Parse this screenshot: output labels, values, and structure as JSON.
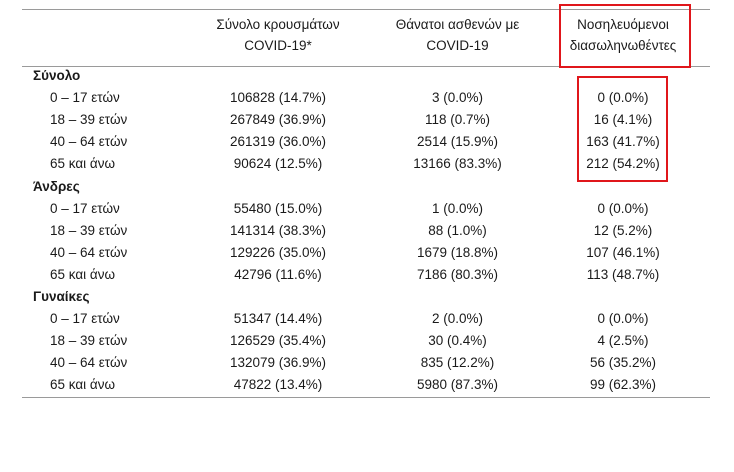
{
  "headers": {
    "col1_line1": "Σύνολο κρουσμάτων",
    "col1_line2": "COVID-19*",
    "col2_line1": "Θάνατοι ασθενών με",
    "col2_line2": "COVID-19",
    "col3_line1": "Νοσηλευόμενοι",
    "col3_line2": "διασωληνωθέντες"
  },
  "highlight_color": "#e0161b",
  "sections": [
    {
      "title": "Σύνολο",
      "rows": [
        {
          "label": "0 – 17 ετών",
          "cases": "106828 (14.7%)",
          "deaths": "3 (0.0%)",
          "intubated": "0 (0.0%)"
        },
        {
          "label": "18 – 39 ετών",
          "cases": "267849 (36.9%)",
          "deaths": "118 (0.7%)",
          "intubated": "16 (4.1%)"
        },
        {
          "label": "40 – 64 ετών",
          "cases": "261319 (36.0%)",
          "deaths": "2514 (15.9%)",
          "intubated": "163 (41.7%)"
        },
        {
          "label": "65 και άνω",
          "cases": "90624 (12.5%)",
          "deaths": "13166 (83.3%)",
          "intubated": "212 (54.2%)"
        }
      ]
    },
    {
      "title": "Άνδρες",
      "rows": [
        {
          "label": "0 – 17 ετών",
          "cases": "55480 (15.0%)",
          "deaths": "1 (0.0%)",
          "intubated": "0 (0.0%)"
        },
        {
          "label": "18 – 39 ετών",
          "cases": "141314 (38.3%)",
          "deaths": "88 (1.0%)",
          "intubated": "12 (5.2%)"
        },
        {
          "label": "40 – 64 ετών",
          "cases": "129226 (35.0%)",
          "deaths": "1679 (18.8%)",
          "intubated": "107 (46.1%)"
        },
        {
          "label": "65 και άνω",
          "cases": "42796 (11.6%)",
          "deaths": "7186 (80.3%)",
          "intubated": "113 (48.7%)"
        }
      ]
    },
    {
      "title": "Γυναίκες",
      "rows": [
        {
          "label": "0 – 17 ετών",
          "cases": "51347 (14.4%)",
          "deaths": "2 (0.0%)",
          "intubated": "0 (0.0%)"
        },
        {
          "label": "18 – 39 ετών",
          "cases": "126529 (35.4%)",
          "deaths": "30 (0.4%)",
          "intubated": "4 (2.5%)"
        },
        {
          "label": "40 – 64 ετών",
          "cases": "132079 (36.9%)",
          "deaths": "835 (12.2%)",
          "intubated": "56 (35.2%)"
        },
        {
          "label": "65 και άνω",
          "cases": "47822 (13.4%)",
          "deaths": "5980 (87.3%)",
          "intubated": "99 (62.3%)"
        }
      ]
    }
  ]
}
